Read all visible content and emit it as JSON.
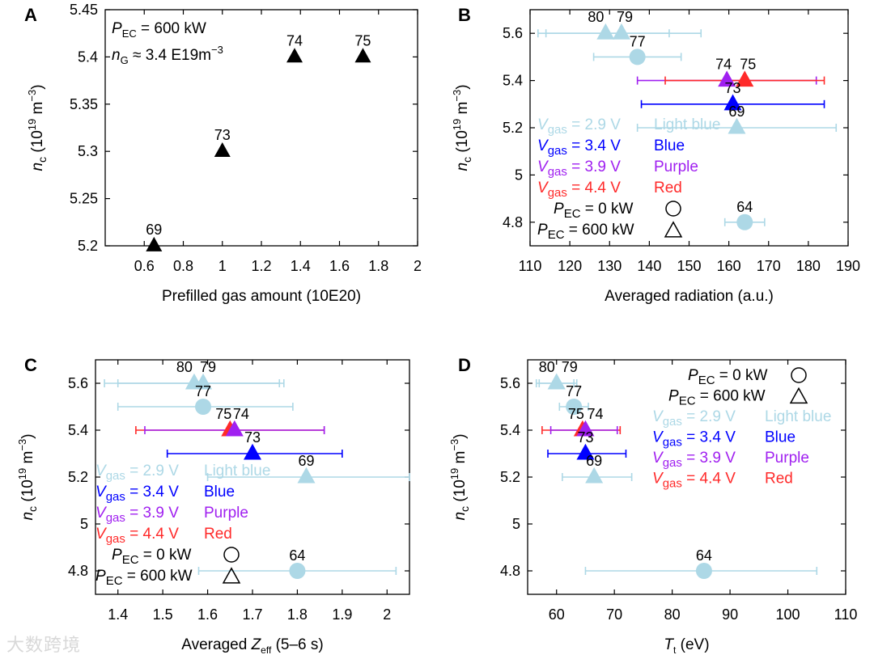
{
  "watermark": "大数跨境",
  "colors": {
    "lightblue": "#add8e6",
    "blue": "#0000ff",
    "purple": "#a020f0",
    "red": "#ff2a2a",
    "black": "#000000"
  },
  "chart_data": [
    {
      "panel": "A",
      "type": "scatter",
      "xlabel": "Prefilled gas amount (10E20)",
      "ylabel": "n_c (10^19 m^-3)",
      "xlim": [
        0.4,
        2.0
      ],
      "ylim": [
        5.2,
        5.45
      ],
      "xticks": [
        "0.6",
        "0.8",
        "1",
        "1.2",
        "1.4",
        "1.6",
        "1.8",
        "2"
      ],
      "yticks": [
        "5.2",
        "5.25",
        "5.3",
        "5.35",
        "5.4",
        "5.45"
      ],
      "xtick_values": [
        0.6,
        0.8,
        1.0,
        1.2,
        1.4,
        1.6,
        1.8,
        2.0
      ],
      "ytick_values": [
        5.2,
        5.25,
        5.3,
        5.35,
        5.4,
        5.45
      ],
      "annotations": [
        "P_EC = 600 kW",
        "n_G ≈ 3.4 E19m^-3"
      ],
      "points": [
        {
          "label": "69",
          "x": 0.65,
          "y": 5.2,
          "color": "black",
          "marker": "triangle"
        },
        {
          "label": "73",
          "x": 1.0,
          "y": 5.3,
          "color": "black",
          "marker": "triangle"
        },
        {
          "label": "74",
          "x": 1.37,
          "y": 5.4,
          "color": "black",
          "marker": "triangle"
        },
        {
          "label": "75",
          "x": 1.72,
          "y": 5.4,
          "color": "black",
          "marker": "triangle"
        }
      ]
    },
    {
      "panel": "B",
      "type": "scatter",
      "xlabel": "Averaged radiation (a.u.)",
      "ylabel": "n_c (10^19 m^-3)",
      "xlim": [
        110,
        190
      ],
      "ylim": [
        4.7,
        5.7
      ],
      "xticks": [
        "110",
        "120",
        "130",
        "140",
        "150",
        "160",
        "170",
        "180",
        "190"
      ],
      "yticks": [
        "4.8",
        "5",
        "5.2",
        "5.4",
        "5.6"
      ],
      "xtick_values": [
        110,
        120,
        130,
        140,
        150,
        160,
        170,
        180,
        190
      ],
      "ytick_values": [
        4.8,
        5.0,
        5.2,
        5.4,
        5.6
      ],
      "legend": [
        {
          "text": "V_gas = 2.9 V",
          "name": "Light blue",
          "color": "lightblue"
        },
        {
          "text": "V_gas = 3.4 V",
          "name": "Blue",
          "color": "blue"
        },
        {
          "text": "V_gas = 3.9 V",
          "name": "Purple",
          "color": "purple"
        },
        {
          "text": "V_gas = 4.4 V",
          "name": "Red",
          "color": "red"
        },
        {
          "text": "P_EC = 0 kW",
          "marker": "circle"
        },
        {
          "text": "P_EC = 600 kW",
          "marker": "triangle"
        }
      ],
      "points": [
        {
          "label": "80",
          "x": 129,
          "y": 5.6,
          "xerr": [
            112,
            145
          ],
          "color": "lightblue",
          "marker": "triangle",
          "label_dx": -12
        },
        {
          "label": "79",
          "x": 133,
          "y": 5.6,
          "xerr": [
            114,
            153
          ],
          "color": "lightblue",
          "marker": "triangle",
          "label_dx": 4
        },
        {
          "label": "77",
          "x": 137,
          "y": 5.5,
          "xerr": [
            126,
            148
          ],
          "color": "lightblue",
          "marker": "circle"
        },
        {
          "label": "74",
          "x": 159.5,
          "y": 5.4,
          "xerr": [
            137,
            182
          ],
          "color": "purple",
          "marker": "triangle",
          "label_dx": -4
        },
        {
          "label": "75",
          "x": 164,
          "y": 5.4,
          "xerr": [
            144,
            184
          ],
          "color": "red",
          "marker": "triangle",
          "label_dx": 4
        },
        {
          "label": "73",
          "x": 161,
          "y": 5.3,
          "xerr": [
            138,
            184
          ],
          "color": "blue",
          "marker": "triangle"
        },
        {
          "label": "69",
          "x": 162,
          "y": 5.2,
          "xerr": [
            137,
            187
          ],
          "color": "lightblue",
          "marker": "triangle"
        },
        {
          "label": "64",
          "x": 164,
          "y": 4.8,
          "xerr": [
            159,
            169
          ],
          "color": "lightblue",
          "marker": "circle"
        }
      ]
    },
    {
      "panel": "C",
      "type": "scatter",
      "xlabel": "Averaged Z_eff (5–6 s)",
      "ylabel": "n_c (10^19 m^-3)",
      "xlim": [
        1.35,
        2.05
      ],
      "ylim": [
        4.7,
        5.7
      ],
      "xticks": [
        "1.4",
        "1.5",
        "1.6",
        "1.7",
        "1.8",
        "1.9",
        "2"
      ],
      "yticks": [
        "4.8",
        "5",
        "5.2",
        "5.4",
        "5.6"
      ],
      "xtick_values": [
        1.4,
        1.5,
        1.6,
        1.7,
        1.8,
        1.9,
        2.0
      ],
      "ytick_values": [
        4.8,
        5.0,
        5.2,
        5.4,
        5.6
      ],
      "legend": [
        {
          "text": "V_gas = 2.9 V",
          "name": "Light blue",
          "color": "lightblue"
        },
        {
          "text": "V_gas = 3.4 V",
          "name": "Blue",
          "color": "blue"
        },
        {
          "text": "V_gas = 3.9 V",
          "name": "Purple",
          "color": "purple"
        },
        {
          "text": "V_gas = 4.4 V",
          "name": "Red",
          "color": "red"
        },
        {
          "text": "P_EC = 0 kW",
          "marker": "circle"
        },
        {
          "text": "P_EC = 600 kW",
          "marker": "triangle"
        }
      ],
      "points": [
        {
          "label": "80",
          "x": 1.57,
          "y": 5.6,
          "xerr": [
            1.37,
            1.76
          ],
          "color": "lightblue",
          "marker": "triangle",
          "label_dx": -12
        },
        {
          "label": "79",
          "x": 1.59,
          "y": 5.6,
          "xerr": [
            1.4,
            1.77
          ],
          "color": "lightblue",
          "marker": "triangle",
          "label_dx": 6
        },
        {
          "label": "77",
          "x": 1.59,
          "y": 5.5,
          "xerr": [
            1.4,
            1.79
          ],
          "color": "lightblue",
          "marker": "circle"
        },
        {
          "label": "75",
          "x": 1.65,
          "y": 5.4,
          "xerr": [
            1.44,
            1.86
          ],
          "color": "red",
          "marker": "triangle",
          "label_dx": -8
        },
        {
          "label": "74",
          "x": 1.66,
          "y": 5.4,
          "xerr": [
            1.46,
            1.86
          ],
          "color": "purple",
          "marker": "triangle",
          "label_dx": 8
        },
        {
          "label": "73",
          "x": 1.7,
          "y": 5.3,
          "xerr": [
            1.51,
            1.9
          ],
          "color": "blue",
          "marker": "triangle"
        },
        {
          "label": "69",
          "x": 1.82,
          "y": 5.2,
          "xerr": [
            1.6,
            2.05
          ],
          "color": "lightblue",
          "marker": "triangle"
        },
        {
          "label": "64",
          "x": 1.8,
          "y": 4.8,
          "xerr": [
            1.58,
            2.02
          ],
          "color": "lightblue",
          "marker": "circle"
        }
      ]
    },
    {
      "panel": "D",
      "type": "scatter",
      "xlabel": "T_t (eV)",
      "ylabel": "n_c (10^19 m^-3)",
      "xlim": [
        55,
        110
      ],
      "ylim": [
        4.7,
        5.7
      ],
      "xticks": [
        "60",
        "70",
        "80",
        "90",
        "100",
        "110"
      ],
      "yticks": [
        "4.8",
        "5",
        "5.2",
        "5.4",
        "5.6"
      ],
      "xtick_values": [
        60,
        70,
        80,
        90,
        100,
        110
      ],
      "ytick_values": [
        4.8,
        5.0,
        5.2,
        5.4,
        5.6
      ],
      "legend": [
        {
          "text": "P_EC = 0 kW",
          "marker": "circle"
        },
        {
          "text": "P_EC = 600 kW",
          "marker": "triangle"
        },
        {
          "text": "V_gas = 2.9 V",
          "name": "Light blue",
          "color": "lightblue"
        },
        {
          "text": "V_gas = 3.4 V",
          "name": "Blue",
          "color": "blue"
        },
        {
          "text": "V_gas = 3.9 V",
          "name": "Purple",
          "color": "purple"
        },
        {
          "text": "V_gas = 4.4 V",
          "name": "Red",
          "color": "red"
        }
      ],
      "points": [
        {
          "label": "80",
          "x": 60,
          "y": 5.6,
          "xerr": [
            56.5,
            63.5
          ],
          "color": "lightblue",
          "marker": "triangle",
          "label_dx": -12
        },
        {
          "label": "79",
          "x": 60,
          "y": 5.6,
          "xerr": [
            57,
            63
          ],
          "color": "lightblue",
          "marker": "triangle",
          "label_dx": 16
        },
        {
          "label": "77",
          "x": 63,
          "y": 5.5,
          "xerr": [
            60.5,
            65.5
          ],
          "color": "lightblue",
          "marker": "circle"
        },
        {
          "label": "75",
          "x": 64.5,
          "y": 5.4,
          "xerr": [
            57.5,
            71
          ],
          "color": "red",
          "marker": "triangle",
          "label_dx": -8
        },
        {
          "label": "74",
          "x": 65,
          "y": 5.4,
          "xerr": [
            59,
            70.5
          ],
          "color": "purple",
          "marker": "triangle",
          "label_dx": 12
        },
        {
          "label": "73",
          "x": 65,
          "y": 5.3,
          "xerr": [
            58.5,
            72
          ],
          "color": "blue",
          "marker": "triangle"
        },
        {
          "label": "69",
          "x": 66.5,
          "y": 5.2,
          "xerr": [
            61,
            73
          ],
          "color": "lightblue",
          "marker": "triangle"
        },
        {
          "label": "64",
          "x": 85.5,
          "y": 4.8,
          "xerr": [
            65,
            105
          ],
          "color": "lightblue",
          "marker": "circle"
        }
      ]
    }
  ]
}
